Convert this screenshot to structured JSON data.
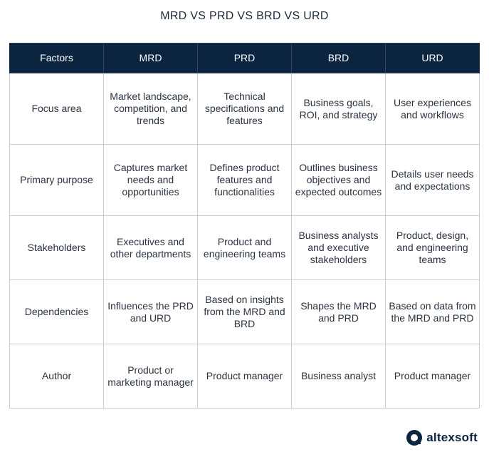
{
  "title": "MRD VS PRD VS BRD VS URD",
  "table": {
    "headers": [
      "Factors",
      "MRD",
      "PRD",
      "BRD",
      "URD"
    ],
    "rows": [
      [
        "Focus area",
        "Market landscape, competition, and trends",
        "Technical specifications and features",
        "Business goals, ROI, and strategy",
        "User experiences and workflows"
      ],
      [
        "Primary purpose",
        "Captures market needs and opportunities",
        "Defines product features and functionalities",
        "Outlines business objectives and expected outcomes",
        "Details user needs and expectations"
      ],
      [
        "Stakeholders",
        "Executives and other departments",
        "Product and engineering teams",
        "Business analysts and executive stakeholders",
        "Product, design, and engineering teams"
      ],
      [
        "Dependencies",
        "Influences the PRD and URD",
        "Based on insights from the MRD and BRD",
        "Shapes the MRD and PRD",
        "Based on data from the MRD and PRD"
      ],
      [
        "Author",
        "Product or marketing manager",
        "Product manager",
        "Business analyst",
        "Product manager"
      ]
    ]
  },
  "brand": {
    "name": "altexsoft",
    "icon": "altexsoft-logo-icon",
    "color": "#0b2440"
  },
  "colors": {
    "header_bg": "#0b2440",
    "header_text": "#ffffff",
    "border": "#c9ced6"
  }
}
